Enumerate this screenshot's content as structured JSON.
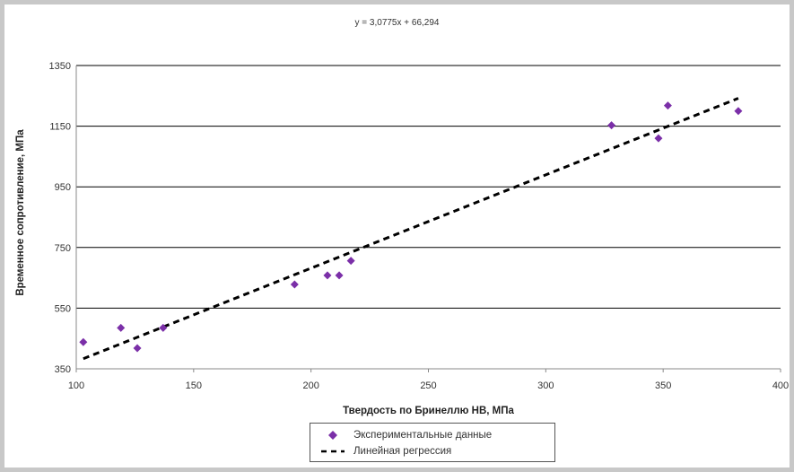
{
  "chart_data": {
    "type": "scatter",
    "equation": "y = 3,0775x + 66,294",
    "xlabel": "Твердость по Бринеллю НВ, МПа",
    "ylabel": "Временное сопротивление, МПа",
    "xlim": [
      100,
      400
    ],
    "ylim": [
      350,
      1350
    ],
    "xticks": [
      "100",
      "150",
      "200",
      "250",
      "300",
      "350",
      "400"
    ],
    "yticks": [
      "350",
      "550",
      "750",
      "950",
      "1150",
      "1350"
    ],
    "grid": "horizontal",
    "legend_position": "bottom",
    "series": [
      {
        "name": "Экспериментальные данные",
        "kind": "points",
        "color": "#7b2fa8",
        "points": [
          {
            "x": 103,
            "y": 438
          },
          {
            "x": 119,
            "y": 485
          },
          {
            "x": 126,
            "y": 418
          },
          {
            "x": 137,
            "y": 485
          },
          {
            "x": 193,
            "y": 628
          },
          {
            "x": 207,
            "y": 658
          },
          {
            "x": 212,
            "y": 658
          },
          {
            "x": 217,
            "y": 706
          },
          {
            "x": 328,
            "y": 1153
          },
          {
            "x": 348,
            "y": 1110
          },
          {
            "x": 352,
            "y": 1218
          },
          {
            "x": 382,
            "y": 1200
          }
        ]
      },
      {
        "name": "Линейная регрессия",
        "kind": "line",
        "color": "#000000",
        "slope": 3.0775,
        "intercept": 66.294,
        "x_range": [
          103,
          382
        ]
      }
    ]
  }
}
